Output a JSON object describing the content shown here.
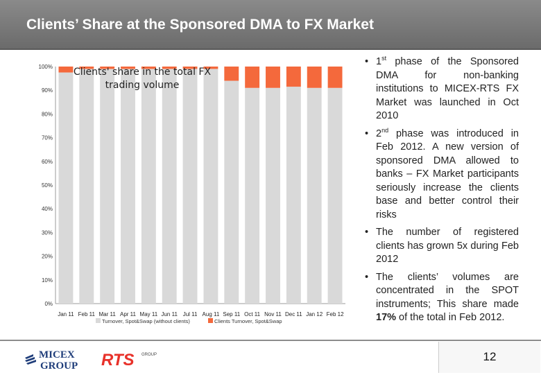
{
  "slide": {
    "title": "Clients’ Share at the Sponsored DMA to FX Market",
    "page_number": "12"
  },
  "bullets": [
    {
      "before": "1",
      "sup": "st",
      "after": " phase of the Sponsored DMA for non-banking institutions to MICEX-RTS FX Market was launched in Oct 2010"
    },
    {
      "before": "2",
      "sup": "nd",
      "after": " phase was introduced in Feb 2012. A new version of sponsored DMA allowed to banks – FX Market participants seriously increase the clients base and better control their risks"
    },
    {
      "before": "The number of registered clients has grown 5x during Feb 2012",
      "sup": "",
      "after": ""
    },
    {
      "before": "The clients’ volumes are concentrated in the SPOT instruments; This share made ",
      "bold": "17%",
      "after": " of the total in Feb 2012."
    }
  ],
  "bullet_marker": "•",
  "logos": {
    "micex_line1": "MICEX",
    "micex_line2": "GROUP",
    "rts": "RTS",
    "rts_small": "GROUP"
  },
  "chart_data": {
    "type": "bar",
    "stacked": true,
    "title": "Clients' share in the total FX trading volume",
    "categories": [
      "Jan 11",
      "Feb 11",
      "Mar 11",
      "Apr 11",
      "May 11",
      "Jun 11",
      "Jul 11",
      "Aug 11",
      "Sep 11",
      "Oct 11",
      "Nov 11",
      "Dec 11",
      "Jan 12",
      "Feb 12"
    ],
    "series": [
      {
        "name": "Turnover, Spot&Swap (without clients)",
        "color": "#d9d9d9",
        "values": [
          97.5,
          99,
          99,
          99,
          99,
          99,
          99,
          99,
          94,
          91,
          91,
          91.5,
          91,
          91
        ]
      },
      {
        "name": "Clients Turnover, Spot&Swap",
        "color": "#f4693c",
        "values": [
          2.5,
          1,
          1,
          1,
          1,
          1,
          1,
          1,
          6,
          9,
          9,
          8.5,
          9,
          9
        ]
      }
    ],
    "yticks": [
      "0%",
      "10%",
      "20%",
      "30%",
      "40%",
      "50%",
      "60%",
      "70%",
      "80%",
      "90%",
      "100%"
    ],
    "ylim": [
      0,
      100
    ],
    "legend": "bottom",
    "grid": false
  }
}
